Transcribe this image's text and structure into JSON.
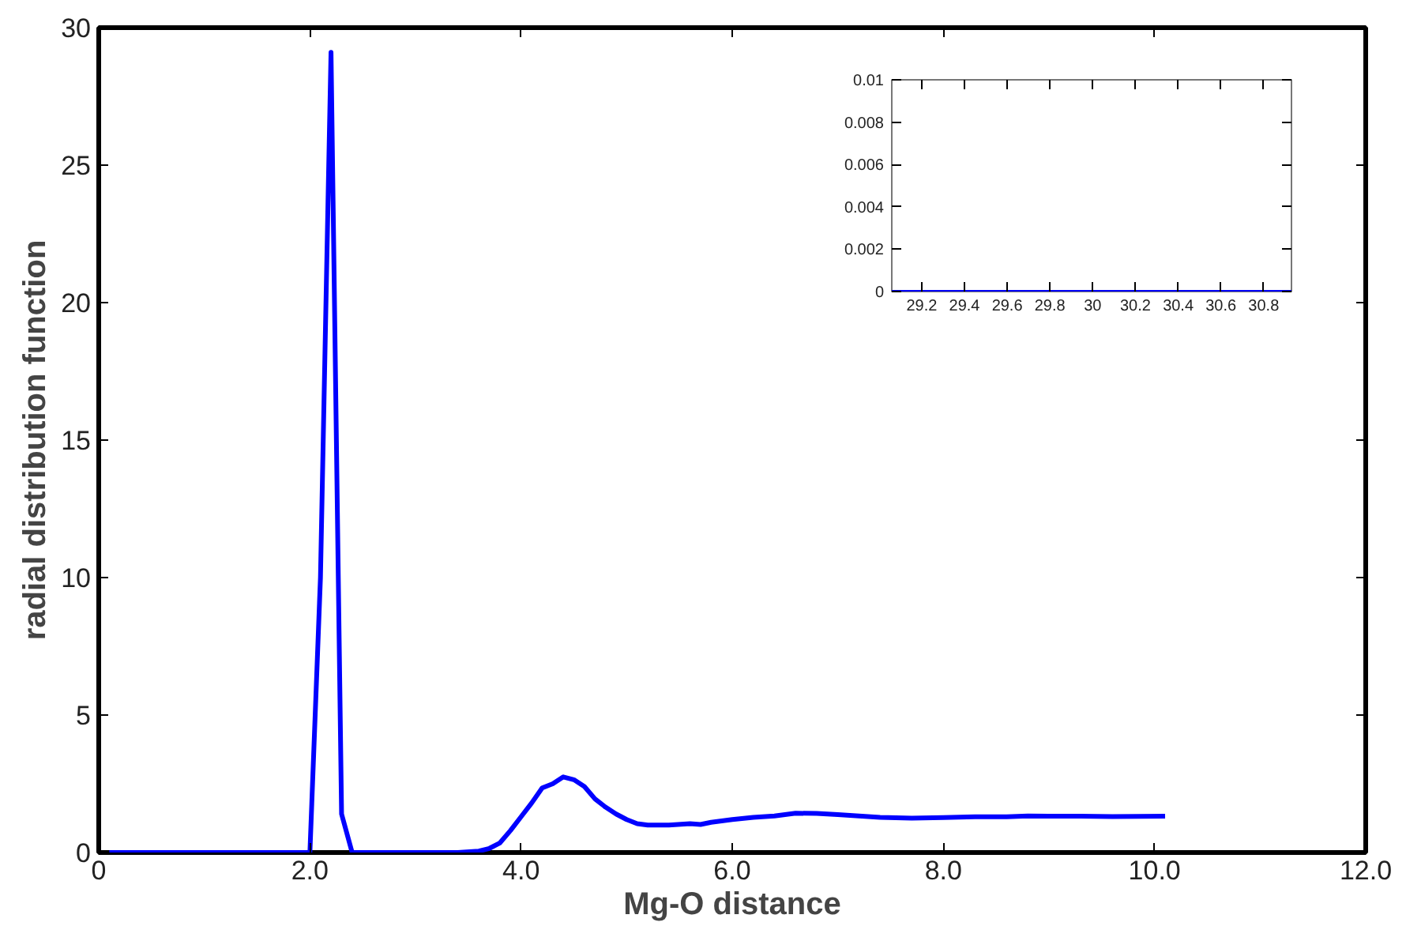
{
  "chart_data": [
    {
      "type": "line",
      "xlabel": "Mg-O distance",
      "ylabel": "radial distribution function",
      "x": [
        0.1,
        0.5,
        1.0,
        1.5,
        2.0,
        2.1,
        2.2,
        2.3,
        2.4,
        2.6,
        3.0,
        3.4,
        3.6,
        3.7,
        3.8,
        3.9,
        4.0,
        4.1,
        4.2,
        4.3,
        4.4,
        4.5,
        4.6,
        4.7,
        4.8,
        4.9,
        5.0,
        5.1,
        5.2,
        5.4,
        5.6,
        5.7,
        5.8,
        6.0,
        6.2,
        6.4,
        6.6,
        6.8,
        7.0,
        7.2,
        7.4,
        7.7,
        8.0,
        8.3,
        8.6,
        8.8,
        9.0,
        9.3,
        9.6,
        10.1
      ],
      "series": [
        {
          "color": "#0000ff",
          "values": [
            0,
            0,
            0,
            0,
            0,
            10,
            29.1,
            1.4,
            0,
            0,
            0,
            0,
            0.05,
            0.15,
            0.35,
            0.8,
            1.3,
            1.8,
            2.35,
            2.5,
            2.75,
            2.65,
            2.4,
            1.95,
            1.65,
            1.4,
            1.2,
            1.05,
            1.0,
            1.0,
            1.05,
            1.02,
            1.1,
            1.2,
            1.28,
            1.33,
            1.43,
            1.42,
            1.38,
            1.33,
            1.28,
            1.25,
            1.27,
            1.3,
            1.3,
            1.33,
            1.32,
            1.32,
            1.31,
            1.32
          ]
        }
      ],
      "xlim": [
        0,
        12
      ],
      "ylim": [
        0,
        30
      ],
      "xticks": [
        0,
        {
          "value": 2,
          "label": "2.0"
        },
        {
          "value": 4,
          "label": "4.0"
        },
        {
          "value": 6,
          "label": "6.0"
        },
        {
          "value": 8,
          "label": "8.0"
        },
        {
          "value": 10,
          "label": "10.0"
        },
        {
          "value": 12,
          "label": "12.0"
        }
      ],
      "yticks": [
        0,
        5,
        10,
        15,
        20,
        25,
        30
      ],
      "grid": false
    },
    {
      "type": "line",
      "x": [
        29.06,
        30.93
      ],
      "series": [
        {
          "color": "#0000ff",
          "values": [
            0,
            0
          ]
        }
      ],
      "xlim": [
        29.06,
        30.93
      ],
      "ylim": [
        0,
        0.01
      ],
      "xticks": [
        29.2,
        29.4,
        29.6,
        29.8,
        30,
        30.2,
        30.4,
        30.6,
        30.8
      ],
      "yticks": [
        0,
        0.002,
        0.004,
        0.006,
        0.008,
        0.01
      ],
      "grid": false
    }
  ]
}
